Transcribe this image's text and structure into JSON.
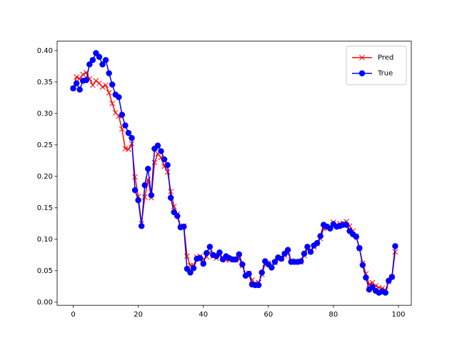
{
  "chart_data": {
    "type": "line",
    "x": [
      0,
      1,
      2,
      3,
      4,
      5,
      6,
      7,
      8,
      9,
      10,
      11,
      12,
      13,
      14,
      15,
      16,
      17,
      18,
      19,
      20,
      21,
      22,
      23,
      24,
      25,
      26,
      27,
      28,
      29,
      30,
      31,
      32,
      33,
      34,
      35,
      36,
      37,
      38,
      39,
      40,
      41,
      42,
      43,
      44,
      45,
      46,
      47,
      48,
      49,
      50,
      51,
      52,
      53,
      54,
      55,
      56,
      57,
      58,
      59,
      60,
      61,
      62,
      63,
      64,
      65,
      66,
      67,
      68,
      69,
      70,
      71,
      72,
      73,
      74,
      75,
      76,
      77,
      78,
      79,
      80,
      81,
      82,
      83,
      84,
      85,
      86,
      87,
      88,
      89,
      90,
      91,
      92,
      93,
      94,
      95,
      96,
      97,
      98,
      99
    ],
    "series": [
      {
        "name": "Pred",
        "color": "#ff0000",
        "marker": "x",
        "values": [
          0.34,
          0.358,
          0.355,
          0.362,
          0.365,
          0.355,
          0.345,
          0.352,
          0.348,
          0.342,
          0.345,
          0.333,
          0.316,
          0.301,
          0.296,
          0.275,
          0.244,
          0.243,
          0.252,
          0.199,
          0.168,
          0.125,
          0.167,
          0.195,
          0.166,
          0.222,
          0.236,
          0.23,
          0.216,
          0.207,
          0.176,
          0.152,
          0.14,
          0.12,
          0.121,
          0.073,
          0.058,
          0.058,
          0.072,
          0.073,
          0.068,
          0.072,
          0.079,
          0.073,
          0.07,
          0.074,
          0.069,
          0.067,
          0.068,
          0.067,
          0.067,
          0.07,
          0.058,
          0.045,
          0.046,
          0.035,
          0.03,
          0.031,
          0.044,
          0.061,
          0.062,
          0.058,
          0.063,
          0.069,
          0.069,
          0.074,
          0.079,
          0.066,
          0.064,
          0.064,
          0.064,
          0.074,
          0.084,
          0.081,
          0.088,
          0.093,
          0.101,
          0.117,
          0.12,
          0.119,
          0.127,
          0.123,
          0.125,
          0.125,
          0.128,
          0.121,
          0.113,
          0.105,
          0.085,
          0.062,
          0.045,
          0.028,
          0.031,
          0.026,
          0.023,
          0.022,
          0.019,
          0.033,
          0.04,
          0.08
        ]
      },
      {
        "name": "True",
        "color": "#0000ff",
        "marker": "o",
        "values": [
          0.34,
          0.348,
          0.338,
          0.352,
          0.353,
          0.378,
          0.385,
          0.396,
          0.39,
          0.378,
          0.385,
          0.364,
          0.346,
          0.33,
          0.326,
          0.298,
          0.281,
          0.269,
          0.261,
          0.178,
          0.162,
          0.121,
          0.186,
          0.212,
          0.17,
          0.244,
          0.249,
          0.24,
          0.227,
          0.218,
          0.166,
          0.143,
          0.137,
          0.119,
          0.12,
          0.053,
          0.047,
          0.054,
          0.069,
          0.07,
          0.061,
          0.078,
          0.088,
          0.075,
          0.073,
          0.079,
          0.068,
          0.073,
          0.07,
          0.068,
          0.068,
          0.076,
          0.06,
          0.042,
          0.045,
          0.028,
          0.027,
          0.027,
          0.047,
          0.065,
          0.06,
          0.055,
          0.064,
          0.071,
          0.069,
          0.077,
          0.083,
          0.064,
          0.064,
          0.064,
          0.065,
          0.077,
          0.088,
          0.08,
          0.09,
          0.094,
          0.105,
          0.123,
          0.12,
          0.117,
          0.124,
          0.12,
          0.121,
          0.123,
          0.123,
          0.113,
          0.108,
          0.104,
          0.086,
          0.059,
          0.039,
          0.02,
          0.024,
          0.018,
          0.015,
          0.017,
          0.015,
          0.034,
          0.04,
          0.089
        ]
      }
    ],
    "xlim": [
      -4.95,
      103.95
    ],
    "xticks": [
      0,
      20,
      40,
      60,
      80,
      100
    ],
    "ylim": [
      -0.005,
      0.415
    ],
    "yticks": [
      {
        "value": 0,
        "label": "0.00"
      },
      0.05,
      {
        "value": 0.1,
        "label": "0.10"
      },
      0.15,
      {
        "value": 0.2,
        "label": "0.20"
      },
      0.25,
      {
        "value": 0.3,
        "label": "0.30"
      },
      0.35,
      {
        "value": 0.4,
        "label": "0.40"
      }
    ],
    "grid": false,
    "legend": "upper right"
  }
}
